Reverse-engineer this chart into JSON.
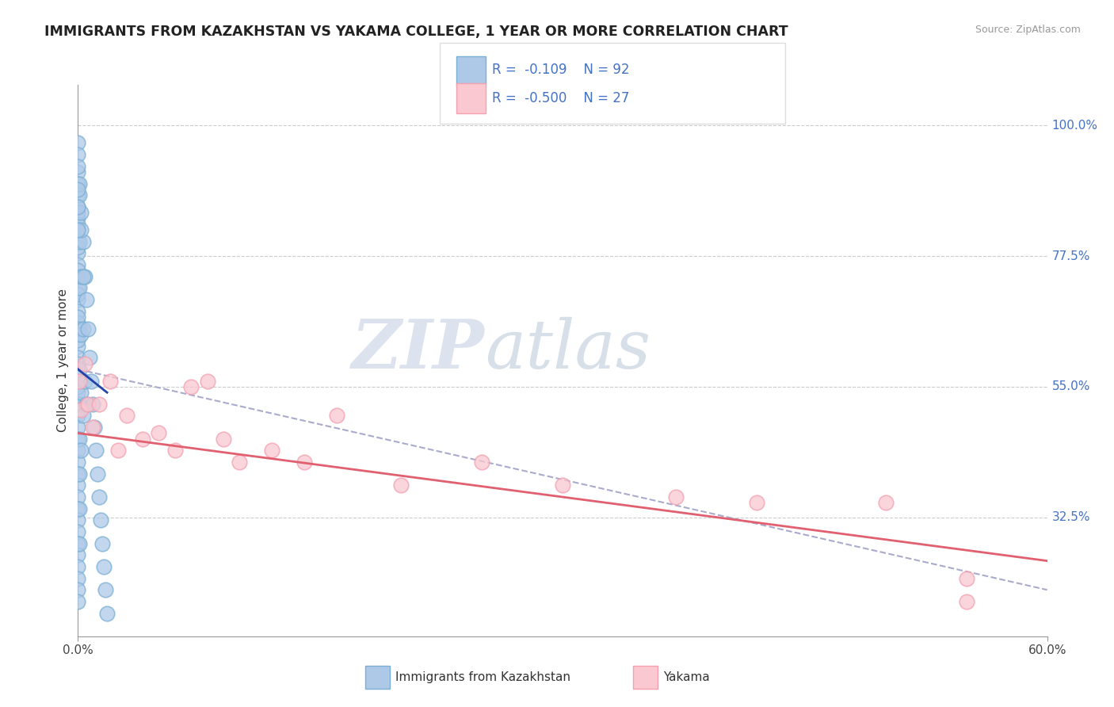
{
  "title": "IMMIGRANTS FROM KAZAKHSTAN VS YAKAMA COLLEGE, 1 YEAR OR MORE CORRELATION CHART",
  "source": "Source: ZipAtlas.com",
  "ylabel": "College, 1 year or more",
  "xlim": [
    0.0,
    60.0
  ],
  "ylim": [
    12.0,
    107.0
  ],
  "right_yticks": [
    100.0,
    77.5,
    55.0,
    32.5
  ],
  "blue_color": "#7bafd4",
  "blue_fill": "#aec9e8",
  "pink_color": "#f4a0b0",
  "pink_fill": "#f9c8d0",
  "legend_R1": "-0.109",
  "legend_N1": "92",
  "legend_R2": "-0.500",
  "legend_N2": "27",
  "legend_label1": "Immigrants from Kazakhstan",
  "legend_label2": "Yakama",
  "right_axis_color": "#4472c4",
  "grid_color": "#cccccc",
  "dashed_line_color": "#aaaacc",
  "blue_line_color": "#2244aa",
  "pink_line_color": "#e06070",
  "title_color": "#222222",
  "title_fontsize": 12.5,
  "blue_points_x": [
    0.0,
    0.0,
    0.0,
    0.0,
    0.0,
    0.0,
    0.0,
    0.0,
    0.0,
    0.0,
    0.0,
    0.0,
    0.0,
    0.0,
    0.0,
    0.0,
    0.0,
    0.0,
    0.0,
    0.0,
    0.0,
    0.0,
    0.0,
    0.0,
    0.0,
    0.0,
    0.0,
    0.0,
    0.0,
    0.0,
    0.0,
    0.0,
    0.0,
    0.0,
    0.0,
    0.0,
    0.0,
    0.0,
    0.0,
    0.0,
    0.0,
    0.0,
    0.0,
    0.0,
    0.0,
    0.0,
    0.0,
    0.0,
    0.0,
    0.0,
    0.1,
    0.1,
    0.1,
    0.1,
    0.1,
    0.1,
    0.1,
    0.1,
    0.1,
    0.1,
    0.2,
    0.2,
    0.2,
    0.2,
    0.2,
    0.3,
    0.3,
    0.3,
    0.4,
    0.4,
    0.5,
    0.5,
    0.6,
    0.7,
    0.8,
    0.9,
    1.0,
    1.1,
    1.2,
    1.3,
    1.4,
    1.5,
    1.6,
    1.7,
    1.8,
    0.1,
    0.2,
    0.3,
    0.0,
    0.0,
    0.0,
    0.0
  ],
  "blue_points_y": [
    97.0,
    95.0,
    92.0,
    90.0,
    88.0,
    86.0,
    84.0,
    82.0,
    80.0,
    78.0,
    76.0,
    74.0,
    72.0,
    70.0,
    68.0,
    66.0,
    64.0,
    62.0,
    60.0,
    58.0,
    56.0,
    54.0,
    52.0,
    50.0,
    48.0,
    46.0,
    44.0,
    42.0,
    40.0,
    38.0,
    36.0,
    34.0,
    32.0,
    30.0,
    28.0,
    26.0,
    24.0,
    22.0,
    20.0,
    18.0,
    85.0,
    83.0,
    79.0,
    75.0,
    71.0,
    67.0,
    63.0,
    59.0,
    55.0,
    51.0,
    88.0,
    80.0,
    72.0,
    65.0,
    58.0,
    52.0,
    46.0,
    40.0,
    34.0,
    28.0,
    85.0,
    74.0,
    64.0,
    54.0,
    44.0,
    80.0,
    65.0,
    50.0,
    74.0,
    56.0,
    70.0,
    52.0,
    65.0,
    60.0,
    56.0,
    52.0,
    48.0,
    44.0,
    40.0,
    36.0,
    32.0,
    28.0,
    24.0,
    20.0,
    16.0,
    90.0,
    82.0,
    74.0,
    93.0,
    89.0,
    86.0,
    82.0
  ],
  "pink_points_x": [
    0.1,
    0.2,
    0.4,
    0.6,
    0.9,
    1.3,
    2.0,
    2.5,
    3.0,
    4.0,
    5.0,
    6.0,
    7.0,
    8.0,
    9.0,
    10.0,
    12.0,
    14.0,
    16.0,
    20.0,
    25.0,
    30.0,
    37.0,
    42.0,
    50.0,
    55.0,
    55.0
  ],
  "pink_points_y": [
    56.0,
    51.0,
    59.0,
    52.0,
    48.0,
    52.0,
    56.0,
    44.0,
    50.0,
    46.0,
    47.0,
    44.0,
    55.0,
    56.0,
    46.0,
    42.0,
    44.0,
    42.0,
    50.0,
    38.0,
    42.0,
    38.0,
    36.0,
    35.0,
    35.0,
    22.0,
    18.0
  ],
  "blue_reg_x0": 0.0,
  "blue_reg_x1": 1.8,
  "blue_reg_y0": 58.0,
  "blue_reg_y1": 54.0,
  "blue_dash_x0": 0.0,
  "blue_dash_x1": 60.0,
  "blue_dash_y0": 58.0,
  "blue_dash_y1": 20.0,
  "pink_reg_x0": 0.0,
  "pink_reg_x1": 60.0,
  "pink_reg_y0": 47.0,
  "pink_reg_y1": 25.0
}
